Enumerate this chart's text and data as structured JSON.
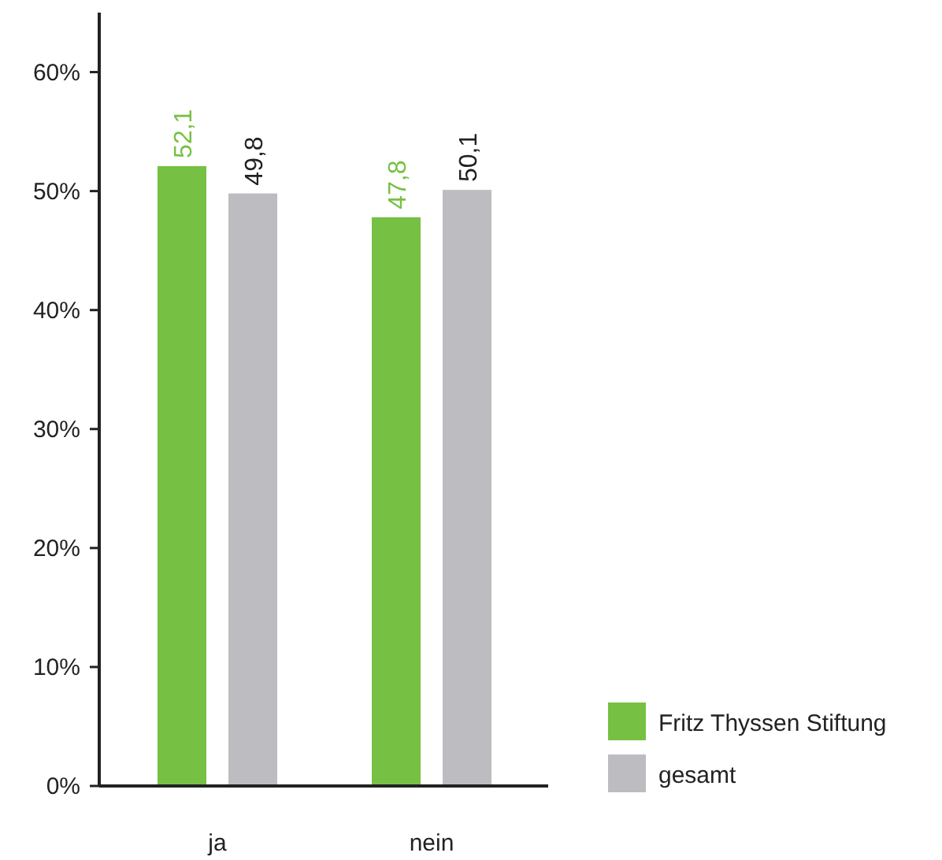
{
  "chart_data": {
    "type": "bar",
    "categories": [
      "ja",
      "nein"
    ],
    "series": [
      {
        "name": "Fritz Thyssen Stiftung",
        "color": "#76c043",
        "values": [
          52.1,
          47.8
        ],
        "value_labels": [
          "52,1",
          "47,8"
        ]
      },
      {
        "name": "gesamt",
        "color": "#bdbdc1",
        "values": [
          49.8,
          50.1
        ],
        "value_labels": [
          "49,8",
          "50,1"
        ]
      }
    ],
    "ylim": [
      0,
      65
    ],
    "yticks": [
      {
        "value": 0,
        "label": "0%"
      },
      {
        "value": 10,
        "label": "10%"
      },
      {
        "value": 20,
        "label": "20%"
      },
      {
        "value": 30,
        "label": "30%"
      },
      {
        "value": 40,
        "label": "40%"
      },
      {
        "value": 50,
        "label": "50%"
      },
      {
        "value": 60,
        "label": "60%"
      }
    ],
    "grid": false,
    "legend": "bottom right"
  }
}
